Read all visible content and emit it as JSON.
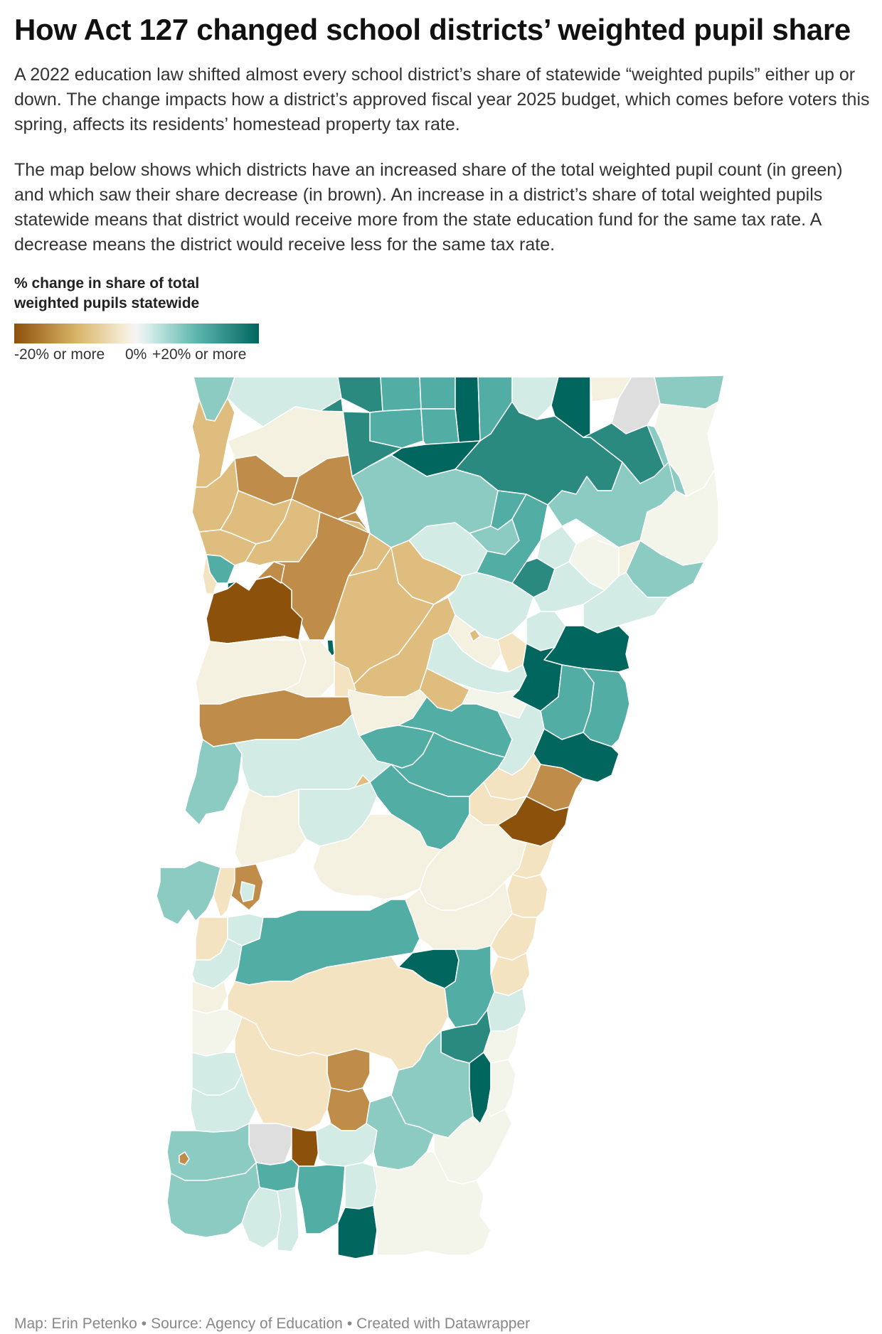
{
  "title": "How Act 127 changed school districts’ weighted pupil share",
  "intro": {
    "paragraph1": "A 2022 education law shifted almost every school district’s share of statewide “weighted pupils” either up or down. The change impacts how a district’s approved fiscal year 2025 budget, which comes before voters this spring, affects its residents’ homestead property tax rate.",
    "paragraph2": "The map below shows which districts have an increased share of the total weighted pupil count (in green) and which saw their share decrease (in brown). An increase in a district’s share of total weighted pupils statewide means that district would receive more from the state education fund for the same tax rate. A decrease means the district would receive less for the same tax rate."
  },
  "legend": {
    "title_line1": "% change in share of total",
    "title_line2": "weighted pupils statewide",
    "label_min": "-20% or more",
    "label_mid": "0%",
    "label_max": "+20% or more",
    "colors": [
      "#8c510a",
      "#d8b365",
      "#f6ecd6",
      "#f5f5f5",
      "#d6ede9",
      "#5ab4ac",
      "#01665e"
    ]
  },
  "map": {
    "colors": {
      "brown_dark": "#8c510a",
      "brown": "#bf8c4a",
      "tan": "#dfbd7e",
      "beige": "#f3e3c1",
      "cream": "#f5f1e0",
      "neutral": "#f3f5ea",
      "mint": "#d2ebe5",
      "teal_light": "#8ccbc2",
      "teal": "#52aea5",
      "teal_dark": "#2a8a7f",
      "green_dark": "#01665e",
      "no_data": "#dedede"
    }
  },
  "footer": {
    "map_credit": "Map: Erin Petenko",
    "source": "Source: Agency of Education",
    "created": "Created with Datawrapper"
  }
}
